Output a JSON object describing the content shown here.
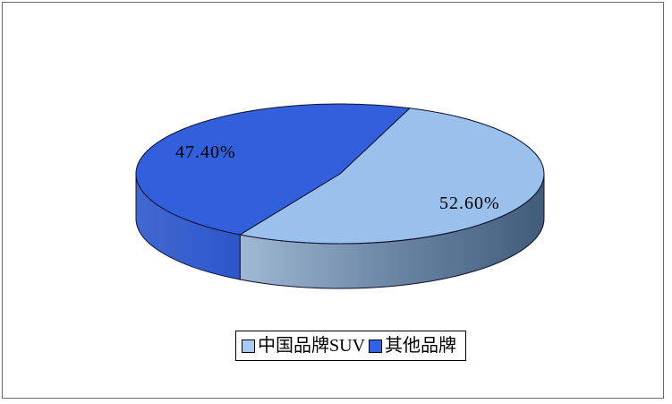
{
  "page": {
    "background_color": "#FFFFFF",
    "frame_border_color": "#6B6B6B"
  },
  "chart_data": {
    "type": "pie",
    "title": "",
    "effect": "3d",
    "legend_position": "bottom",
    "grid": false,
    "start_angle_deg": 70,
    "outline_color": "#10102E",
    "slices": [
      {
        "label": "中国品牌SUV",
        "value": 52.6,
        "display": "52.60%",
        "color": "#9AC1EC",
        "rim_colors": [
          "#9FB8D3",
          "#6B86A5",
          "#415C7A"
        ],
        "legend_swatch_color": "#A5CBF2"
      },
      {
        "label": "其他品牌",
        "value": 47.4,
        "display": "47.40%",
        "color": "#3260DC",
        "rim_colors": [
          "#4268D0",
          "#2C56CC"
        ],
        "legend_swatch_color": "#2F62E6"
      }
    ]
  }
}
